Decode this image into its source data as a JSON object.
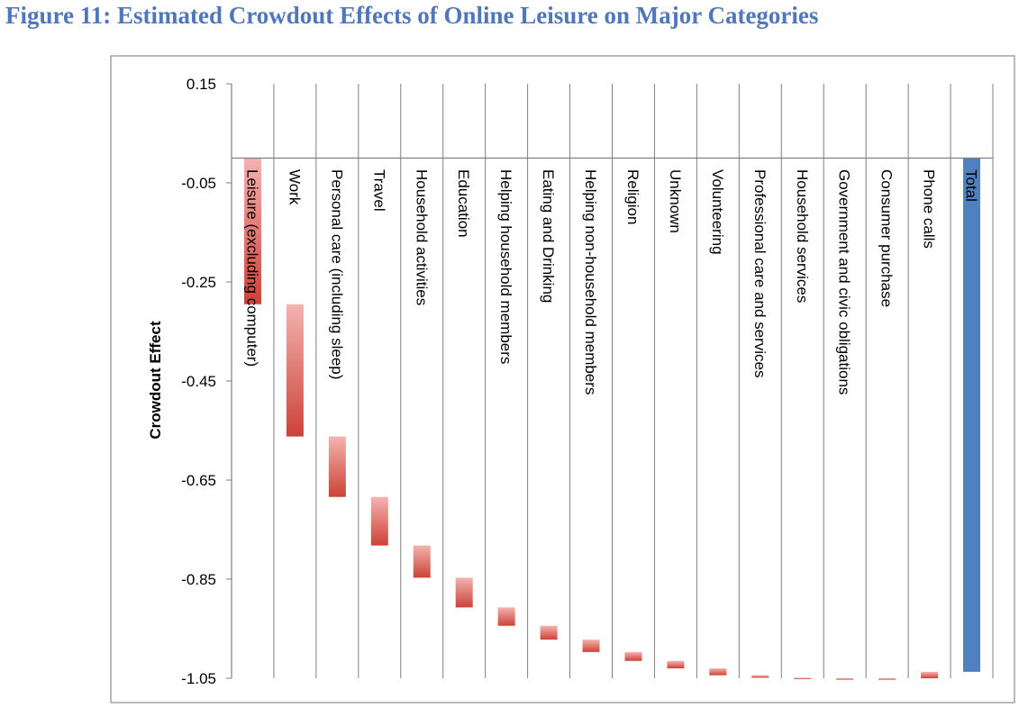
{
  "figure_title": "Figure 11: Estimated Crowdout Effects of Online Leisure on Major Categories",
  "chart_data": {
    "type": "bar",
    "subtype": "waterfall",
    "ylabel": "Crowdout Effect",
    "ylim": [
      -1.05,
      0.15
    ],
    "yticks": [
      0.15,
      -0.05,
      -0.25,
      -0.45,
      -0.65,
      -0.85,
      -1.05
    ],
    "grid": true,
    "legend": "none",
    "colors": {
      "category_bar_light": "#f3b3b0",
      "category_bar_dark": "#cd4237",
      "total_bar": "#4f80c0",
      "axis": "#7f7f7f"
    },
    "categories": [
      "Leisure (excluding computer)",
      "Work",
      "Personal care (including sleep)",
      "Travel",
      "Household activities",
      "Education",
      "Helping household members",
      "Eating and Drinking",
      "Helping non-household members",
      "Religion",
      "Unknown",
      "Volunteering",
      "Professional care and services",
      "Household services",
      "Government and civic obligations",
      "Consumer purchase",
      "Phone calls",
      "Total"
    ],
    "bars": [
      {
        "start": 0.0,
        "end": -0.295
      },
      {
        "start": -0.295,
        "end": -0.562
      },
      {
        "start": -0.562,
        "end": -0.684
      },
      {
        "start": -0.684,
        "end": -0.782
      },
      {
        "start": -0.782,
        "end": -0.847
      },
      {
        "start": -0.847,
        "end": -0.907
      },
      {
        "start": -0.907,
        "end": -0.944
      },
      {
        "start": -0.944,
        "end": -0.972
      },
      {
        "start": -0.972,
        "end": -0.997
      },
      {
        "start": -0.997,
        "end": -1.015
      },
      {
        "start": -1.015,
        "end": -1.03
      },
      {
        "start": -1.03,
        "end": -1.044
      },
      {
        "start": -1.044,
        "end": -1.049
      },
      {
        "start": -1.049,
        "end": -1.05
      },
      {
        "start": -1.05,
        "end": -1.053
      },
      {
        "start": -1.053,
        "end": -1.05
      },
      {
        "start": -1.05,
        "end": -1.037
      },
      {
        "start": 0.0,
        "end": -1.037
      }
    ]
  }
}
